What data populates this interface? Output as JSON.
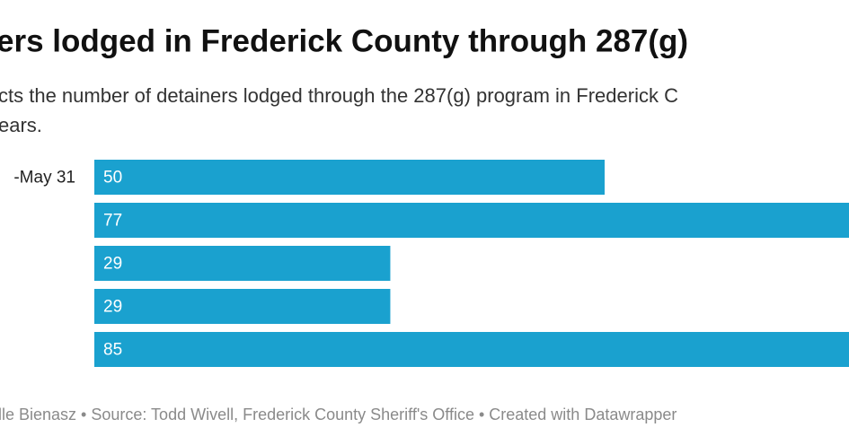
{
  "chart_data": {
    "type": "bar",
    "title": "ers lodged in Frederick County through 287(g)",
    "subtitle": [
      "cts the number of detainers lodged through the 287(g) program in Frederick C",
      "ears."
    ],
    "categories": [
      "-May 31",
      null,
      null,
      null,
      null
    ],
    "values": [
      50,
      77,
      29,
      29,
      85
    ],
    "color": "#1aa1cf",
    "footer": "lle Bienasz • Source: Todd Wivell, Frederick County Sheriff's Office • Created with Datawrapper"
  }
}
